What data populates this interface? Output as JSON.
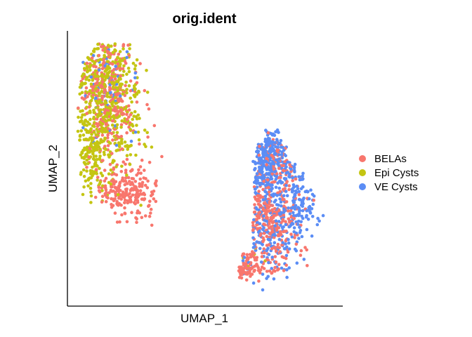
{
  "chart_data": {
    "type": "scatter",
    "title": "orig.ident",
    "xlabel": "UMAP_1",
    "ylabel": "UMAP_2",
    "xlim": [
      -10,
      10
    ],
    "ylim": [
      -10,
      10
    ],
    "grid": false,
    "axis_ticks": false,
    "legend_position": "right",
    "series": [
      {
        "name": "BELAs",
        "color": "#F8766D",
        "clusters": [
          {
            "center": [
              -7.0,
              5.6
            ],
            "spread": [
              1.05,
              2.6
            ],
            "count": 310,
            "shape": "left-main"
          },
          {
            "center": [
              -5.8,
              -1.8
            ],
            "spread": [
              1.15,
              1.0
            ],
            "count": 220,
            "shape": "left-tail"
          },
          {
            "center": [
              4.5,
              -3.4
            ],
            "spread": [
              1.35,
              1.6
            ],
            "count": 260,
            "shape": "right-lower"
          },
          {
            "center": [
              2.7,
              -7.0
            ],
            "spread": [
              1.1,
              0.55
            ],
            "count": 110,
            "shape": "right-bottom"
          },
          {
            "center": [
              5.3,
              0.8
            ],
            "spread": [
              0.9,
              1.4
            ],
            "count": 70,
            "shape": "right-mid"
          }
        ]
      },
      {
        "name": "Epi Cysts",
        "color": "#C4C512",
        "clusters": [
          {
            "center": [
              -7.3,
              5.2
            ],
            "spread": [
              1.25,
              2.9
            ],
            "count": 520,
            "shape": "left-main"
          },
          {
            "center": [
              -8.2,
              0.6
            ],
            "spread": [
              0.6,
              1.4
            ],
            "count": 90,
            "shape": "left-lower"
          },
          {
            "center": [
              3.2,
              -6.2
            ],
            "spread": [
              0.6,
              0.4
            ],
            "count": 6,
            "shape": "right-bottom"
          }
        ]
      },
      {
        "name": "VE Cysts",
        "color": "#5B8DF5",
        "clusters": [
          {
            "center": [
              4.4,
              0.9
            ],
            "spread": [
              0.95,
              1.9
            ],
            "count": 330,
            "shape": "right-top"
          },
          {
            "center": [
              6.9,
              -2.3
            ],
            "spread": [
              0.65,
              1.2
            ],
            "count": 120,
            "shape": "right-side"
          },
          {
            "center": [
              4.6,
              -4.9
            ],
            "spread": [
              1.2,
              1.4
            ],
            "count": 160,
            "shape": "right-lower"
          },
          {
            "center": [
              -7.4,
              6.3
            ],
            "spread": [
              1.2,
              2.3
            ],
            "count": 60,
            "shape": "left-main"
          }
        ]
      }
    ]
  }
}
